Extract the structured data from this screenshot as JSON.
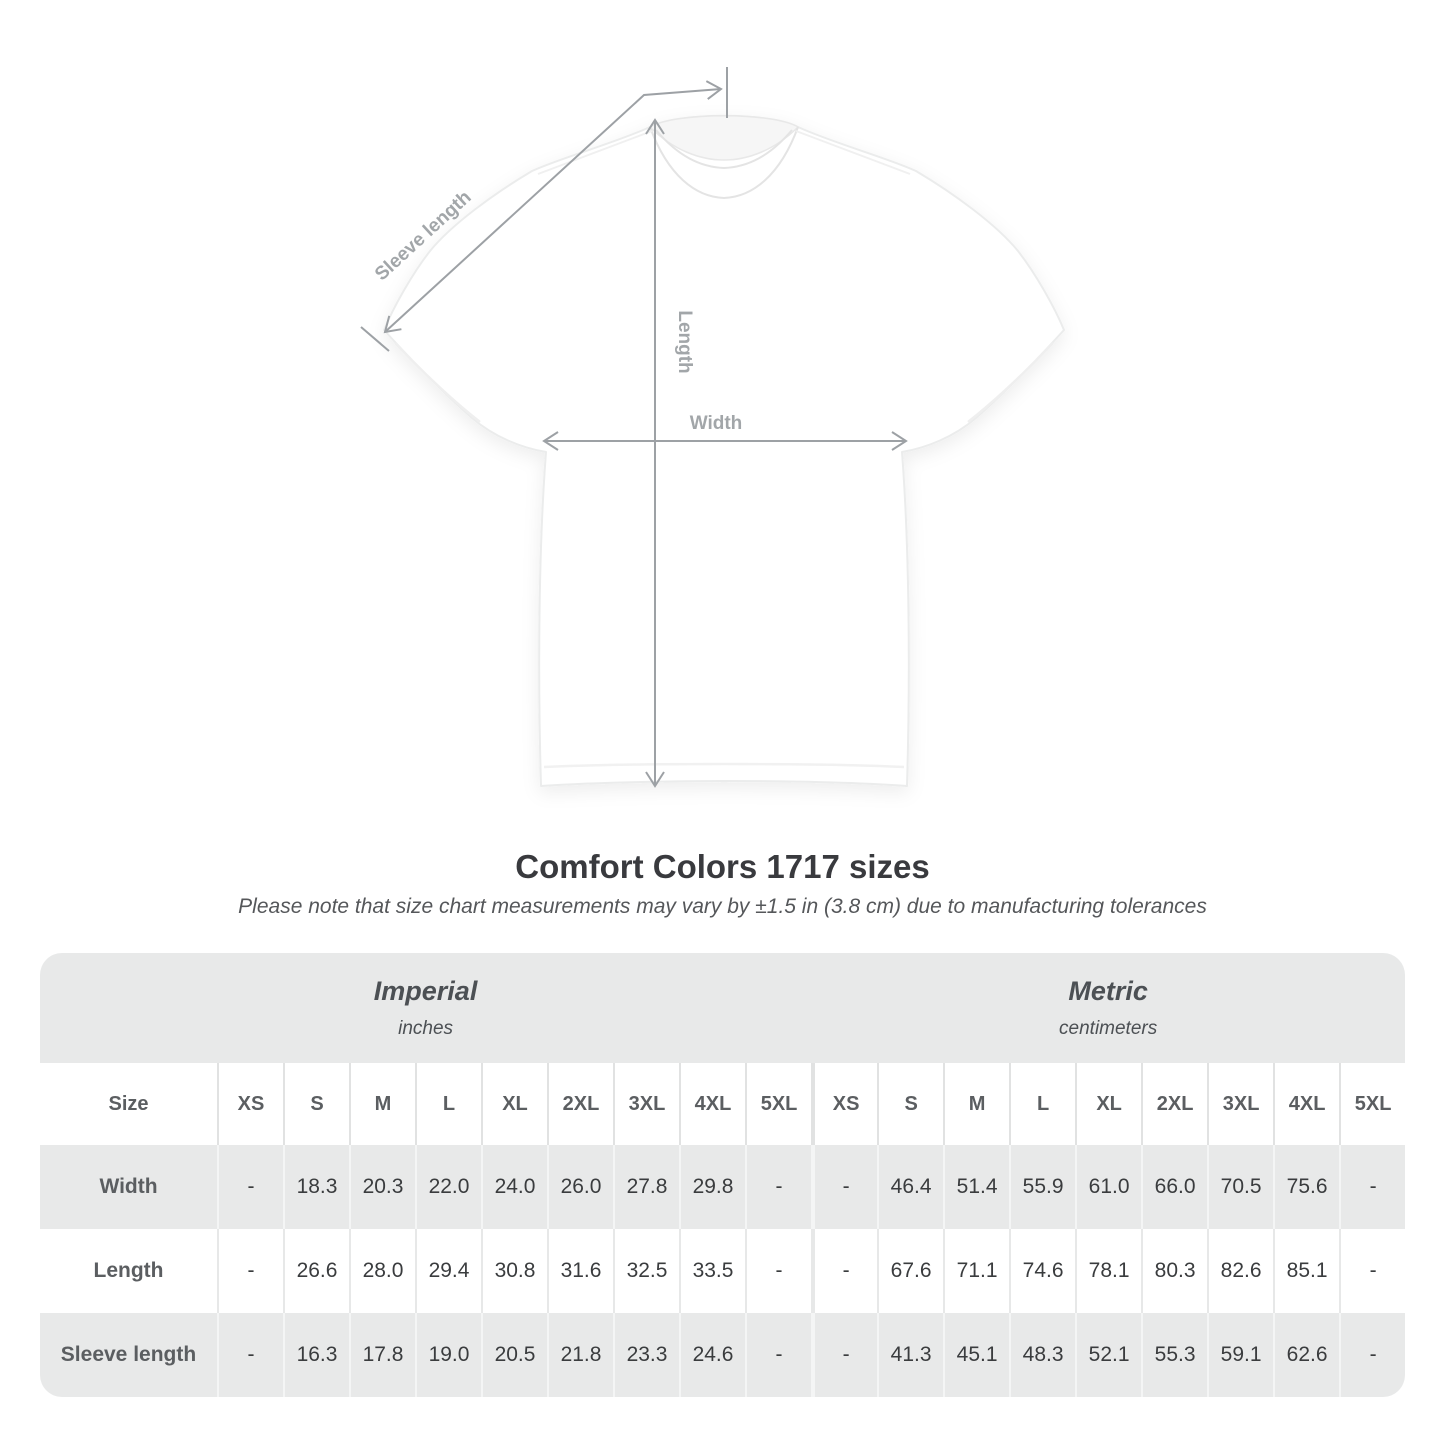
{
  "page": {
    "title": "Comfort Colors 1717 sizes",
    "subtitle": "Please note that size chart measurements may vary by ±1.5 in (3.8 cm) due to manufacturing tolerances"
  },
  "diagram": {
    "sleeve_label": "Sleeve length",
    "length_label": "Length",
    "width_label": "Width",
    "annotation_color": "#9da1a5"
  },
  "chart_data": {
    "type": "table",
    "title": "Comfort Colors 1717 sizes",
    "column_groups": [
      {
        "label": "Imperial",
        "unit": "inches"
      },
      {
        "label": "Metric",
        "unit": "centimeters"
      }
    ],
    "corner_header": "Size",
    "sizes": [
      "XS",
      "S",
      "M",
      "L",
      "XL",
      "2XL",
      "3XL",
      "4XL",
      "5XL"
    ],
    "rows": [
      {
        "label": "Width",
        "imperial": [
          "-",
          "18.3",
          "20.3",
          "22.0",
          "24.0",
          "26.0",
          "27.8",
          "29.8",
          "-"
        ],
        "metric": [
          "-",
          "46.4",
          "51.4",
          "55.9",
          "61.0",
          "66.0",
          "70.5",
          "75.6",
          "-"
        ]
      },
      {
        "label": "Length",
        "imperial": [
          "-",
          "26.6",
          "28.0",
          "29.4",
          "30.8",
          "31.6",
          "32.5",
          "33.5",
          "-"
        ],
        "metric": [
          "-",
          "67.6",
          "71.1",
          "74.6",
          "78.1",
          "80.3",
          "82.6",
          "85.1",
          "-"
        ]
      },
      {
        "label": "Sleeve length",
        "imperial": [
          "-",
          "16.3",
          "17.8",
          "19.0",
          "20.5",
          "21.8",
          "23.3",
          "24.6",
          "-"
        ],
        "metric": [
          "-",
          "41.3",
          "45.1",
          "48.3",
          "52.1",
          "55.3",
          "59.1",
          "62.6",
          "-"
        ]
      }
    ],
    "colors": {
      "header_band": "#e8e9e9",
      "row_alt": "#e8e9e9",
      "row_base": "#ffffff",
      "label_text": "#5b5e61",
      "value_text": "#3a3c3e"
    }
  }
}
